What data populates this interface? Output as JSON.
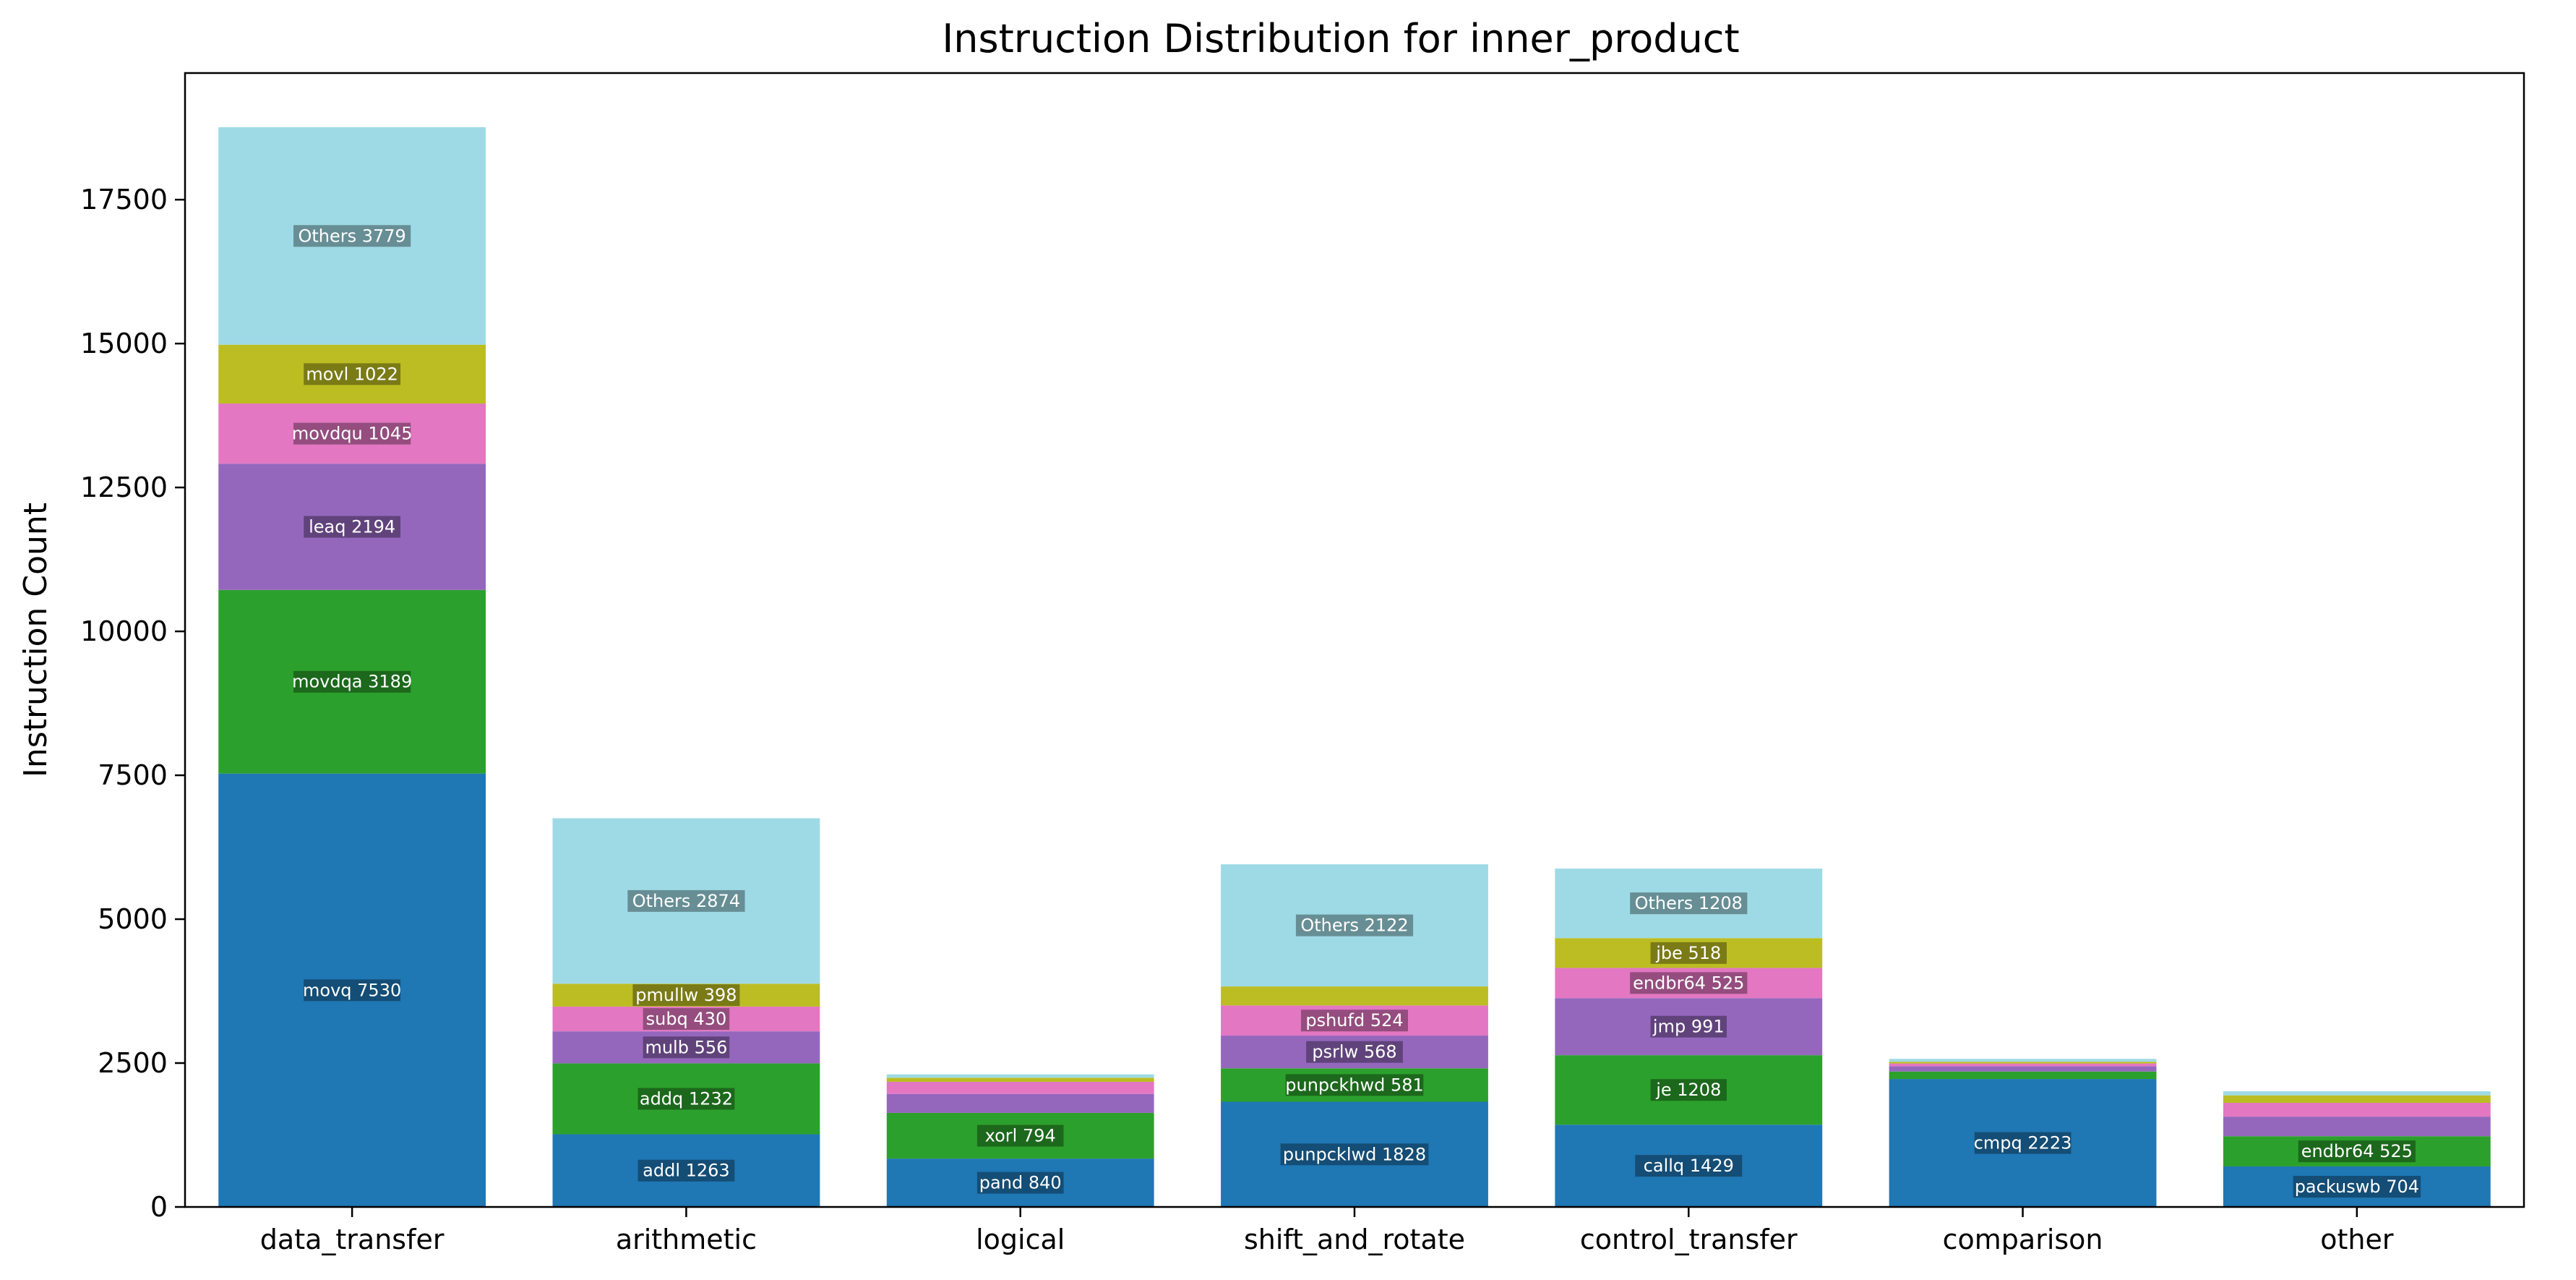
{
  "chart_data": {
    "type": "bar",
    "stacked": true,
    "title": "Instruction Distribution for inner_product",
    "xlabel": "",
    "ylabel": "Instruction Count",
    "ylim": [
      0,
      19700
    ],
    "yticks": [
      0,
      2500,
      5000,
      7500,
      10000,
      12500,
      15000,
      17500
    ],
    "grid": false,
    "colors": [
      "#1f77b4",
      "#2ca02c",
      "#9467bd",
      "#e377c2",
      "#bcbd22",
      "#9edae5"
    ],
    "categories": [
      "data_transfer",
      "arithmetic",
      "logical",
      "shift_and_rotate",
      "control_transfer",
      "comparison",
      "other"
    ],
    "stacks": [
      {
        "category": "data_transfer",
        "segments": [
          {
            "label": "movq",
            "value": 7530
          },
          {
            "label": "movdqa",
            "value": 3189
          },
          {
            "label": "leaq",
            "value": 2194
          },
          {
            "label": "movdqu",
            "value": 1045
          },
          {
            "label": "movl",
            "value": 1022
          },
          {
            "label": "Others",
            "value": 3779
          }
        ]
      },
      {
        "category": "arithmetic",
        "segments": [
          {
            "label": "addl",
            "value": 1263
          },
          {
            "label": "addq",
            "value": 1232
          },
          {
            "label": "mulb",
            "value": 556
          },
          {
            "label": "subq",
            "value": 430
          },
          {
            "label": "pmullw",
            "value": 398
          },
          {
            "label": "Others",
            "value": 2874
          }
        ]
      },
      {
        "category": "logical",
        "segments": [
          {
            "label": "pand",
            "value": 840
          },
          {
            "label": "xorl",
            "value": 794
          },
          {
            "label": "",
            "value": 330
          },
          {
            "label": "",
            "value": 210
          },
          {
            "label": "",
            "value": 70
          },
          {
            "label": "",
            "value": 60
          }
        ]
      },
      {
        "category": "shift_and_rotate",
        "segments": [
          {
            "label": "punpcklwd",
            "value": 1828
          },
          {
            "label": "punpckhwd",
            "value": 581
          },
          {
            "label": "psrlw",
            "value": 568
          },
          {
            "label": "pshufd",
            "value": 524
          },
          {
            "label": "",
            "value": 330
          },
          {
            "label": "Others",
            "value": 2122
          }
        ]
      },
      {
        "category": "control_transfer",
        "segments": [
          {
            "label": "callq",
            "value": 1429
          },
          {
            "label": "je",
            "value": 1208
          },
          {
            "label": "jmp",
            "value": 991
          },
          {
            "label": "endbr64",
            "value": 525
          },
          {
            "label": "jbe",
            "value": 518
          },
          {
            "label": "Others",
            "value": 1208
          }
        ]
      },
      {
        "category": "comparison",
        "segments": [
          {
            "label": "cmpq",
            "value": 2223
          },
          {
            "label": "",
            "value": 130
          },
          {
            "label": "",
            "value": 90
          },
          {
            "label": "",
            "value": 50
          },
          {
            "label": "",
            "value": 30
          },
          {
            "label": "",
            "value": 50
          }
        ]
      },
      {
        "category": "other",
        "segments": [
          {
            "label": "packuswb",
            "value": 704
          },
          {
            "label": "endbr64",
            "value": 525
          },
          {
            "label": "",
            "value": 340
          },
          {
            "label": "",
            "value": 240
          },
          {
            "label": "",
            "value": 130
          },
          {
            "label": "",
            "value": 70
          }
        ]
      }
    ]
  }
}
